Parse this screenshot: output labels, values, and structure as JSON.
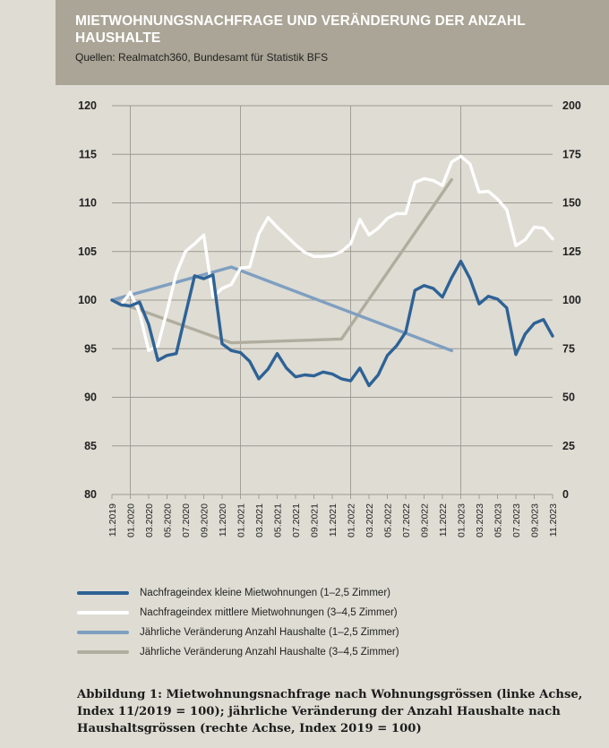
{
  "header": {
    "title": "MIETWOHNUNGSNACHFRAGE UND VERÄNDERUNG DER ANZAHL HAUSHALTE",
    "source": "Quellen: Realmatch360, Bundesamt für Statistik BFS"
  },
  "caption": "Abbildung 1: Mietwohnungsnachfrage nach Wohnungsgrössen (linke Achse, Index 11/2019 = 100); jährliche Veränderung der Anzahl Haushalte nach Haushaltsgrössen (rechte Achse, Index 2019 = 100)",
  "colors": {
    "small": "#2e6295",
    "medium": "#ffffff",
    "hh_small": "#7f9fc1",
    "hh_medium": "#b1ad9e",
    "grid": "#9c9a92",
    "background": "#dedcd3"
  },
  "chart_data": {
    "type": "line",
    "x_tick_labels": [
      "11.2019",
      "01.2020",
      "03.2020",
      "05.2020",
      "07.2020",
      "09.2020",
      "11.2020",
      "01.2021",
      "03.2021",
      "05.2021",
      "07.2021",
      "09.2021",
      "11.2021",
      "01.2022",
      "03.2022",
      "05.2022",
      "07.2022",
      "09.2022",
      "11.2022",
      "01.2023",
      "03.2023",
      "05.2023",
      "07.2023",
      "09.2023",
      "11.2023"
    ],
    "left_axis": {
      "min": 80,
      "max": 120,
      "ticks": [
        80,
        85,
        90,
        95,
        100,
        105,
        110,
        115,
        120
      ]
    },
    "right_axis": {
      "min": 0,
      "max": 200,
      "ticks": [
        0,
        25,
        50,
        75,
        100,
        125,
        150,
        175,
        200
      ]
    },
    "vertical_gridlines_at": [
      "01.2020",
      "01.2021",
      "01.2022",
      "01.2023"
    ],
    "series": [
      {
        "name": "Nachfrageindex kleine Mietwohnungen (1–2,5 Zimmer)",
        "axis": "left",
        "values": [
          100,
          99.5,
          99.4,
          99.8,
          97.5,
          93.8,
          94.3,
          94.5,
          98.5,
          102.5,
          102.2,
          102.6,
          95.5,
          94.8,
          94.6,
          93.7,
          91.9,
          92.9,
          94.5,
          93,
          92.1,
          92.3,
          92.2,
          92.6,
          92.4,
          91.9,
          91.7,
          93,
          91.2,
          92.3,
          94.3,
          95.3,
          96.7,
          101,
          101.5,
          101.2,
          100.3,
          102.3,
          104,
          102.2,
          99.6,
          100.4,
          100.1,
          99.2,
          94.4,
          96.5,
          97.6,
          98,
          96.3
        ]
      },
      {
        "name": "Nachfrageindex mittlere Mietwohnungen (3–4,5 Zimmer)",
        "axis": "left",
        "values": [
          100,
          99.5,
          100.8,
          98.7,
          94.8,
          95.3,
          98.9,
          102.7,
          105,
          105.8,
          106.7,
          100.3,
          101.2,
          101.6,
          103.3,
          103.4,
          106.8,
          108.5,
          107.5,
          106.6,
          105.7,
          104.9,
          104.5,
          104.5,
          104.6,
          105,
          105.8,
          108.3,
          106.7,
          107.4,
          108.4,
          108.9,
          108.9,
          112.1,
          112.5,
          112.3,
          111.8,
          114.2,
          114.8,
          114,
          111.1,
          111.2,
          110.4,
          109.3,
          105.6,
          106.2,
          107.5,
          107.4,
          106.3
        ]
      },
      {
        "name": "Jährliche Veränderung Anzahl Haushalte (1–2,5 Zimmer)",
        "axis": "right",
        "points": [
          [
            "11.2019",
            100
          ],
          [
            "12.2020",
            117
          ],
          [
            "12.2022",
            74
          ]
        ]
      },
      {
        "name": "Jährliche Veränderung Anzahl Haushalte (3–4,5 Zimmer)",
        "axis": "right",
        "points": [
          [
            "11.2019",
            100
          ],
          [
            "12.2020",
            78
          ],
          [
            "12.2021",
            80
          ],
          [
            "12.2022",
            162
          ]
        ]
      }
    ]
  }
}
